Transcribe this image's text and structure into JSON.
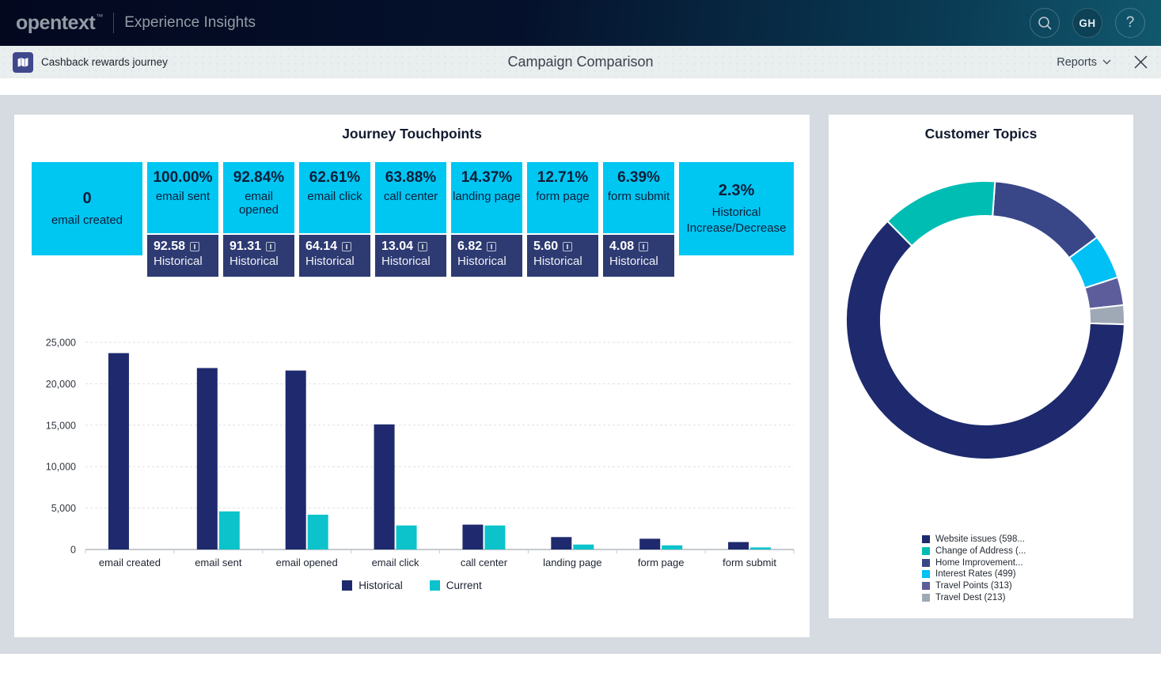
{
  "navbar": {
    "brand": "opentext",
    "brand_tm": "™",
    "product": "Experience Insights",
    "avatar": "GH",
    "help": "?"
  },
  "toolbar": {
    "breadcrumb": "Cashback rewards journey",
    "title": "Campaign Comparison",
    "reports_label": "Reports"
  },
  "journey_panel": {
    "title": "Journey Touchpoints",
    "historical_label": "Historical",
    "tiles": [
      {
        "value": "0",
        "label": "email created"
      },
      {
        "value": "100.00%",
        "label": "email sent",
        "historical": "92.58"
      },
      {
        "value": "92.84%",
        "label": "email opened",
        "historical": "91.31"
      },
      {
        "value": "62.61%",
        "label": "email click",
        "historical": "64.14"
      },
      {
        "value": "63.88%",
        "label": "call center",
        "historical": "13.04"
      },
      {
        "value": "14.37%",
        "label": "landing page",
        "historical": "6.82"
      },
      {
        "value": "12.71%",
        "label": "form page",
        "historical": "5.60"
      },
      {
        "value": "6.39%",
        "label": "form submit",
        "historical": "4.08"
      },
      {
        "value": "2.3%",
        "label": "Historical Increase/Decrease"
      }
    ],
    "legend": [
      {
        "label": "Historical",
        "color": "#1e2a6d"
      },
      {
        "label": "Current",
        "color": "#0cc3cc"
      }
    ]
  },
  "topics_panel": {
    "title": "Customer Topics",
    "legend": [
      {
        "label": "Website issues (598...",
        "color": "#1e2a6d"
      },
      {
        "label": "Change of Address (...",
        "color": "#00bdb4"
      },
      {
        "label": "Home Improvement...",
        "color": "#394687"
      },
      {
        "label": "Interest Rates (499)",
        "color": "#00c0f5"
      },
      {
        "label": "Travel Points (313)",
        "color": "#5d5d9c"
      },
      {
        "label": "Travel Dest (213)",
        "color": "#9fa9b5"
      }
    ]
  },
  "chart_data": [
    {
      "type": "bar",
      "title": "Journey Touchpoints",
      "categories": [
        "email created",
        "email sent",
        "email opened",
        "email click",
        "call center",
        "landing page",
        "form page",
        "form submit"
      ],
      "series": [
        {
          "name": "Historical",
          "color": "#1e2a6d",
          "values": [
            23700,
            21900,
            21600,
            15100,
            3000,
            1500,
            1300,
            900
          ]
        },
        {
          "name": "Current",
          "color": "#0cc3cc",
          "values": [
            0,
            4600,
            4200,
            2900,
            2900,
            600,
            500,
            250
          ]
        }
      ],
      "xlabel": "",
      "ylabel": "",
      "ylim": [
        0,
        25000
      ],
      "yticks": [
        0,
        5000,
        10000,
        15000,
        20000,
        25000
      ],
      "grid": true,
      "legend_position": "bottom"
    },
    {
      "type": "pie",
      "title": "Customer Topics",
      "donut": true,
      "start_angle_deg": 4,
      "slices": [
        {
          "label": "Home Improvement...",
          "value": 1320,
          "color": "#394687"
        },
        {
          "label": "Interest Rates (499)",
          "value": 499,
          "color": "#00c0f5"
        },
        {
          "label": "Travel Points (313)",
          "value": 313,
          "color": "#5d5d9c"
        },
        {
          "label": "Travel Dest (213)",
          "value": 213,
          "color": "#9fa9b5"
        },
        {
          "label": "Website issues (598...",
          "value": 5980,
          "color": "#1e2a6d"
        },
        {
          "label": "Change of Address (...",
          "value": 1300,
          "color": "#00bdb4"
        }
      ],
      "legend_position": "bottom"
    }
  ]
}
